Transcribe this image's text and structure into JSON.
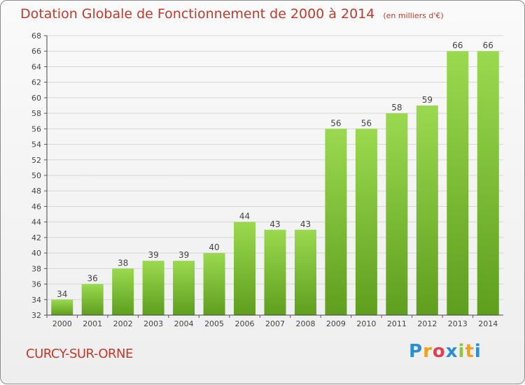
{
  "chart_data": {
    "type": "bar",
    "title": "Dotation Globale de Fonctionnement de 2000 à 2014",
    "subtitle": "(en milliers d'€)",
    "categories": [
      "2000",
      "2001",
      "2002",
      "2003",
      "2004",
      "2005",
      "2006",
      "2007",
      "2008",
      "2009",
      "2010",
      "2011",
      "2012",
      "2013",
      "2014"
    ],
    "values": [
      34,
      36,
      38,
      39,
      39,
      40,
      44,
      43,
      43,
      56,
      56,
      58,
      59,
      66,
      66
    ],
    "ylim": [
      32,
      68
    ],
    "yticks": [
      "32",
      "34",
      "36",
      "38",
      "40",
      "42",
      "44",
      "46",
      "48",
      "50",
      "52",
      "54",
      "56",
      "58",
      "60",
      "62",
      "64",
      "66",
      "68"
    ],
    "xlabel": "",
    "ylabel": "",
    "grid": true,
    "bar_color": "#7cc23a",
    "title_color": "#c0392b"
  },
  "footer": {
    "commune": "CURCY-SUR-ORNE",
    "logo_letters": [
      "P",
      "r",
      "o",
      "x",
      "i",
      "t",
      "i"
    ],
    "logo_colors": [
      "#2a8fd1",
      "#f0a020",
      "#e04050",
      "#2a8fd1",
      "#8cc63f",
      "#f0a020",
      "#2a8fd1"
    ]
  }
}
